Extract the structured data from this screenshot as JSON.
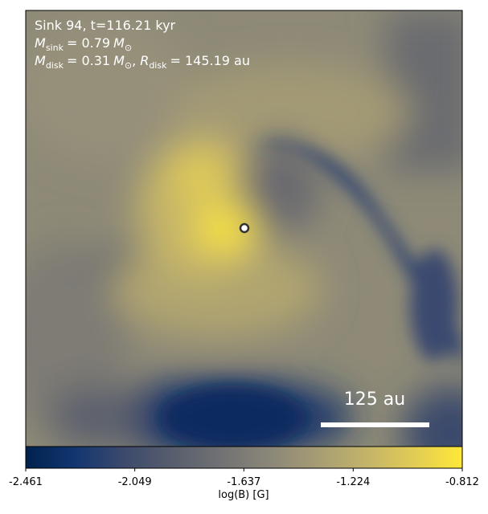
{
  "chart_data": {
    "type": "image",
    "annotations": {
      "line1": "Sink 94, t=116.21 kyr",
      "line2": [
        "M",
        "sink",
        "= 0.79",
        "M",
        "⊙"
      ],
      "line3": [
        "M",
        "disk",
        "= 0.31",
        "M",
        "⊙",
        ",",
        "R",
        "disk",
        "= 145.19 au"
      ],
      "scale_bar": "125 au"
    },
    "colorbar": {
      "label": "log(B) [G]",
      "lim": [
        -2.461,
        -0.812
      ],
      "ticks": [
        -2.461,
        -2.049,
        -1.637,
        -1.224,
        -0.812
      ],
      "colors": [
        "#00224e",
        "#123570",
        "#3b496c",
        "#575d6d",
        "#707173",
        "#8a8678",
        "#a59c74",
        "#c3b369",
        "#e1cc55",
        "#fee838"
      ]
    }
  }
}
